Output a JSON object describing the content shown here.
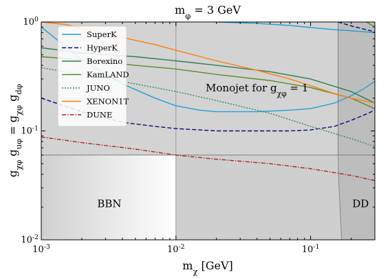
{
  "chart_data": {
    "type": "line",
    "title": "m_φ = 3 GeV",
    "xlabel": "m_χ [GeV]",
    "ylabel": "g_χφ g_uφ = g_χφ g_dφ",
    "xscale": "log",
    "yscale": "log",
    "xlim": [
      0.001,
      0.3
    ],
    "ylim": [
      0.01,
      1.0
    ],
    "x_ticks": [
      {
        "value": 0.001,
        "label": "10^-3"
      },
      {
        "value": 0.01,
        "label": "10^-2"
      },
      {
        "value": 0.1,
        "label": "10^-1"
      }
    ],
    "y_ticks": [
      {
        "value": 0.01,
        "label": "10^-2"
      },
      {
        "value": 0.1,
        "label": "10^-1"
      },
      {
        "value": 1.0,
        "label": "10^0"
      }
    ],
    "legend_position": "top-left",
    "series": [
      {
        "name": "SuperK",
        "color": "#1f9fd9",
        "dash": "solid",
        "x": [
          0.001,
          0.002,
          0.004,
          0.007,
          0.01,
          0.015,
          0.02,
          0.04,
          0.07,
          0.1,
          0.15,
          0.2,
          0.25,
          0.3
        ],
        "y": [
          0.9,
          0.45,
          0.27,
          0.2,
          0.17,
          0.155,
          0.15,
          0.15,
          0.155,
          0.16,
          0.18,
          0.21,
          0.245,
          0.285
        ]
      },
      {
        "name": "HyperK",
        "color": "#0a0a78",
        "dash": "6,3",
        "x": [
          0.001,
          0.002,
          0.004,
          0.007,
          0.01,
          0.02,
          0.04,
          0.07,
          0.1,
          0.15,
          0.2,
          0.25,
          0.3
        ],
        "y": [
          0.2,
          0.15,
          0.12,
          0.11,
          0.105,
          0.1,
          0.1,
          0.1,
          0.102,
          0.11,
          0.125,
          0.14,
          0.155
        ]
      },
      {
        "name": "Borexino",
        "color": "#2e7d4f",
        "dash": "solid",
        "x": [
          0.001,
          0.002,
          0.005,
          0.01,
          0.02,
          0.05,
          0.1,
          0.2,
          0.3
        ],
        "y": [
          0.58,
          0.52,
          0.48,
          0.44,
          0.4,
          0.35,
          0.3,
          0.23,
          0.18
        ]
      },
      {
        "name": "KamLAND",
        "color": "#5a8a2a",
        "dash": "solid",
        "x": [
          0.001,
          0.002,
          0.005,
          0.01,
          0.02,
          0.05,
          0.1,
          0.2,
          0.3
        ],
        "y": [
          0.48,
          0.45,
          0.4,
          0.37,
          0.33,
          0.29,
          0.25,
          0.2,
          0.16
        ]
      },
      {
        "name": "JUNO",
        "color": "#2e8b57",
        "dash": "2,2",
        "x": [
          0.001,
          0.002,
          0.005,
          0.01,
          0.02,
          0.05,
          0.1,
          0.2,
          0.3
        ],
        "y": [
          0.38,
          0.33,
          0.27,
          0.23,
          0.19,
          0.145,
          0.11,
          0.085,
          0.072
        ]
      },
      {
        "name": "XENON1T",
        "color": "#ff7f0e",
        "dash": "solid",
        "x": [
          0.001,
          0.0015,
          0.002,
          0.004,
          0.007,
          0.01,
          0.02,
          0.04,
          0.07,
          0.1,
          0.15,
          0.2,
          0.3
        ],
        "y": [
          1.0,
          0.95,
          0.88,
          0.72,
          0.62,
          0.55,
          0.44,
          0.36,
          0.3,
          0.26,
          0.22,
          0.2,
          0.18
        ]
      },
      {
        "name": "DUNE",
        "color": "#b22222",
        "dash": "6,2,1.5,2",
        "x": [
          0.001,
          0.002,
          0.005,
          0.01,
          0.02,
          0.05,
          0.1,
          0.2,
          0.3
        ],
        "y": [
          0.088,
          0.078,
          0.068,
          0.06,
          0.055,
          0.05,
          0.045,
          0.039,
          0.035
        ]
      }
    ],
    "extra_curves": [
      {
        "color": "#0a0a78",
        "dash": "6,3",
        "x": [
          0.16,
          0.2,
          0.25,
          0.3
        ],
        "y": [
          1.0,
          0.92,
          0.86,
          0.81
        ]
      },
      {
        "color": "#1f9fd9",
        "dash": "solid",
        "x": [
          0.02,
          0.04,
          0.07,
          0.1,
          0.15,
          0.2,
          0.3
        ],
        "y": [
          1.0,
          0.97,
          0.93,
          0.89,
          0.85,
          0.83,
          0.8
        ]
      },
      {
        "color": "#5a8a2a",
        "dash": "solid",
        "x": [
          0.26,
          0.3
        ],
        "y": [
          1.0,
          0.9
        ]
      }
    ],
    "regions": {
      "monojet": {
        "label": "Monojet for g_χφ = 1",
        "y_min": 0.06
      },
      "bbn": {
        "label": "BBN",
        "x_max": 0.01
      },
      "dd": {
        "label": "DD",
        "x_min": 0.16
      }
    }
  }
}
